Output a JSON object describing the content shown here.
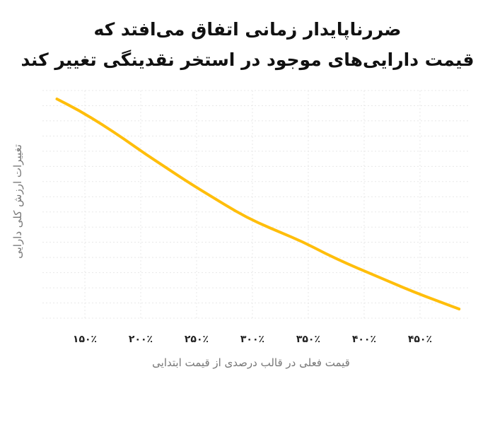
{
  "header": {
    "title_line_1": "ضررناپایدار زمانی اتفاق می‌افتد که",
    "title_line_2": "قیمت دارایی‌های موجود در استخر نقدینگی تغییر کند"
  },
  "colors": {
    "line": "#FFBE0B",
    "grid": "#E8E8E8",
    "text": "#111111",
    "axis_text": "#777777"
  },
  "chart_data": {
    "type": "line",
    "title": "ضررناپایدار زمانی اتفاق می‌افتد که قیمت دارایی‌های موجود در استخر نقدینگی تغییر کند",
    "xlabel": "قیمت فعلی در قالب درصدی از قیمت ابتدایی",
    "ylabel": "تغییرات ارزش کلی دارایی",
    "x_ticks": [
      150,
      200,
      250,
      300,
      350,
      400,
      450
    ],
    "x_tick_labels": [
      "۱۵۰٪",
      "۲۰۰٪",
      "۲۵۰٪",
      "۳۰۰٪",
      "۳۵۰٪",
      "۴۰۰٪",
      "۴۵۰٪"
    ],
    "xlim": [
      112,
      495
    ],
    "ylim": [
      0,
      100
    ],
    "grid": true,
    "series": [
      {
        "x": [
          125,
          145,
          165,
          185,
          205,
          225,
          245,
          265,
          285,
          305,
          325,
          345,
          365,
          385,
          405,
          425,
          445,
          465,
          485
        ],
        "values": [
          100,
          94.5,
          88,
          81,
          73.5,
          66.5,
          59.5,
          53,
          46.5,
          41,
          36.5,
          32,
          26.5,
          21.5,
          17,
          12.5,
          8,
          4,
          0
        ]
      }
    ]
  }
}
